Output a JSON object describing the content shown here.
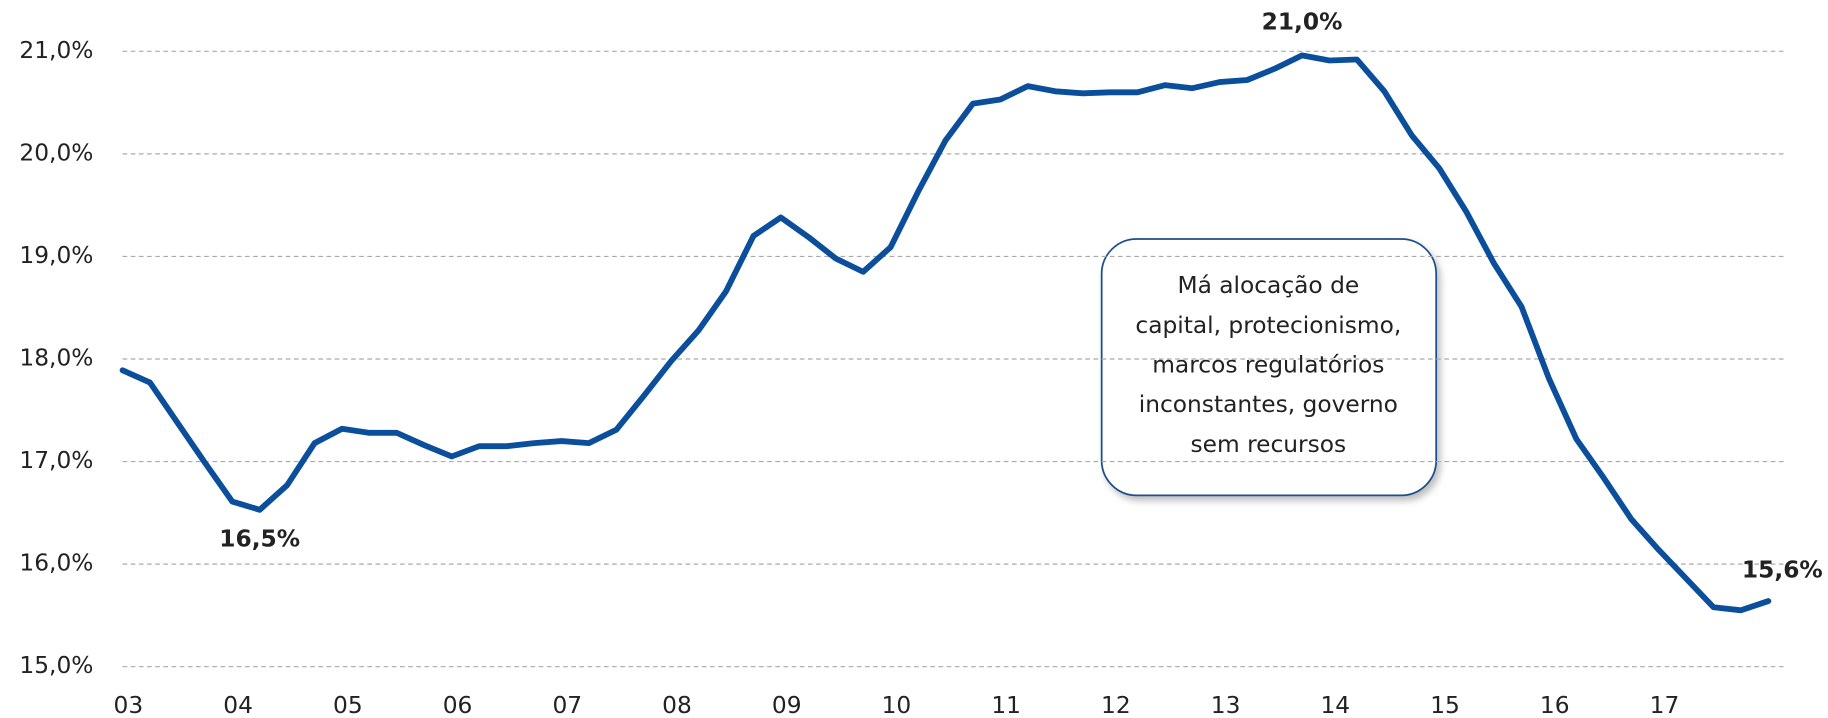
{
  "chart_data": {
    "type": "line",
    "categories": [
      "03",
      null,
      null,
      null,
      "04",
      null,
      null,
      null,
      "05",
      null,
      null,
      null,
      "06",
      null,
      null,
      null,
      "07",
      null,
      null,
      null,
      "08",
      null,
      null,
      null,
      "09",
      null,
      null,
      null,
      "10",
      null,
      null,
      null,
      "11",
      null,
      null,
      null,
      "12",
      null,
      null,
      null,
      "13",
      null,
      null,
      null,
      "14",
      null,
      null,
      null,
      "15",
      null,
      null,
      null,
      "16",
      null,
      null,
      null,
      "17",
      null,
      null,
      null,
      null
    ],
    "series": [
      {
        "color": "#0b4f9c",
        "values": [
          17.89,
          17.77,
          17.38,
          16.99,
          16.61,
          16.53,
          16.77,
          17.18,
          17.32,
          17.28,
          17.28,
          17.16,
          17.05,
          17.15,
          17.15,
          17.18,
          17.2,
          17.18,
          17.31,
          17.64,
          17.98,
          18.28,
          18.66,
          19.2,
          19.38,
          19.19,
          18.98,
          18.85,
          19.09,
          19.63,
          20.13,
          20.49,
          20.53,
          20.66,
          20.61,
          20.59,
          20.6,
          20.6,
          20.67,
          20.64,
          20.7,
          20.72,
          20.83,
          20.96,
          20.91,
          20.92,
          20.61,
          20.18,
          19.86,
          19.43,
          18.93,
          18.51,
          17.81,
          17.22,
          16.84,
          16.44,
          16.14,
          15.86,
          15.58,
          15.55,
          15.64
        ],
        "value_labels": [
          null,
          null,
          null,
          null,
          null,
          "16,5%",
          null,
          null,
          null,
          null,
          null,
          null,
          null,
          null,
          null,
          null,
          null,
          null,
          null,
          null,
          null,
          null,
          null,
          null,
          null,
          null,
          null,
          null,
          null,
          null,
          null,
          null,
          null,
          null,
          null,
          null,
          null,
          null,
          null,
          null,
          null,
          null,
          null,
          "21,0%",
          null,
          null,
          null,
          null,
          null,
          null,
          null,
          null,
          null,
          null,
          null,
          null,
          null,
          null,
          null,
          null,
          "15,6%"
        ]
      }
    ],
    "ylim": [
      15,
      21
    ],
    "yticks": [
      {
        "value": 15,
        "label": "15,0%"
      },
      {
        "value": 16,
        "label": "16,0%"
      },
      {
        "value": 17,
        "label": "17,0%"
      },
      {
        "value": 18,
        "label": "18,0%"
      },
      {
        "value": 19,
        "label": "19,0%"
      },
      {
        "value": 20,
        "label": "20,0%"
      },
      {
        "value": 21,
        "label": "21,0%"
      }
    ],
    "grid": true,
    "annotation": [
      "Má alocação de",
      "capital, protecionismo,",
      "marcos regulatórios",
      "inconstantes, governo",
      "sem recursos"
    ]
  }
}
